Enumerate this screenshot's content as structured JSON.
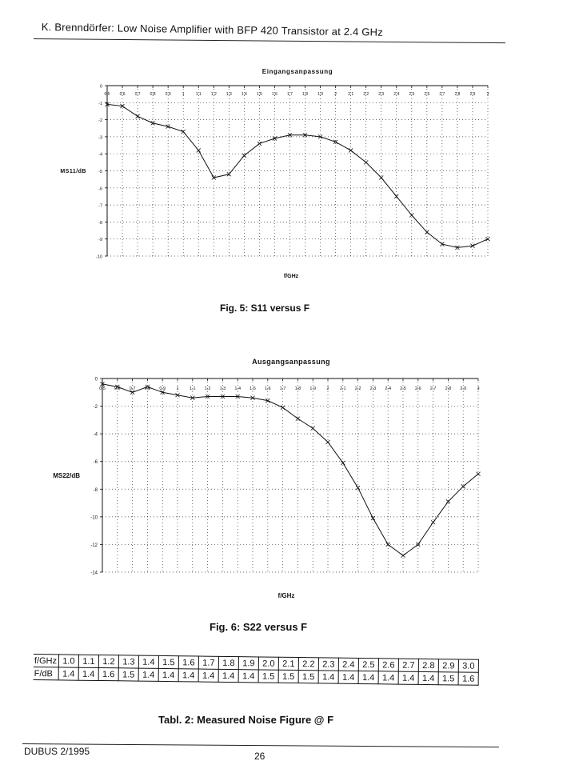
{
  "header": {
    "title": "K. Brenndörfer: Low Noise Amplifier with BFP 420 Transistor at 2.4 GHz"
  },
  "chart_data": [
    {
      "type": "line",
      "title": "Eingangsanpassung",
      "xlabel": "f/GHz",
      "ylabel": "MS11/dB",
      "xlim": [
        0.5,
        3.0
      ],
      "ylim": [
        -10,
        0
      ],
      "grid": true,
      "x_ticks": [
        "0,5",
        "0,6",
        "0,7",
        "0,8",
        "0,9",
        "1",
        "1,1",
        "1,2",
        "1,3",
        "1,4",
        "1,5",
        "1,6",
        "1,7",
        "1,8",
        "1,9",
        "2",
        "2,1",
        "2,2",
        "2,3",
        "2,4",
        "2,5",
        "2,6",
        "2,7",
        "2,8",
        "2,9",
        "3"
      ],
      "y_ticks": [
        "0",
        "-1",
        "-2",
        "-3",
        "-4",
        "-5",
        "-6",
        "-7",
        "-8",
        "-9",
        "-10"
      ],
      "series": [
        {
          "x": [
            0.5,
            0.6,
            0.7,
            0.8,
            0.9,
            1.0,
            1.1,
            1.2,
            1.3,
            1.4,
            1.5,
            1.6,
            1.7,
            1.8,
            1.9,
            2.0,
            2.1,
            2.2,
            2.3,
            2.4,
            2.5,
            2.6,
            2.7,
            2.8,
            2.9,
            3.0
          ],
          "values": [
            -1.1,
            -1.2,
            -1.8,
            -2.2,
            -2.4,
            -2.7,
            -3.8,
            -5.4,
            -5.2,
            -4.1,
            -3.4,
            -3.1,
            -2.9,
            -2.9,
            -3.0,
            -3.3,
            -3.8,
            -4.5,
            -5.4,
            -6.5,
            -7.6,
            -8.6,
            -9.3,
            -9.5,
            -9.4,
            -9.0
          ]
        }
      ]
    },
    {
      "type": "line",
      "title": "Ausgangsanpassung",
      "xlabel": "f/GHz",
      "ylabel": "MS22/dB",
      "xlim": [
        0.5,
        3.0
      ],
      "ylim": [
        -14,
        0
      ],
      "grid": true,
      "x_ticks": [
        "0,5",
        "0,6",
        "0,7",
        "0,8",
        "0,9",
        "1",
        "1,1",
        "1,2",
        "1,3",
        "1,4",
        "1,5",
        "1,6",
        "1,7",
        "1,8",
        "1,9",
        "2",
        "2,1",
        "2,2",
        "2,3",
        "2,4",
        "2,5",
        "2,6",
        "2,7",
        "2,8",
        "2,9",
        "3"
      ],
      "y_ticks": [
        "0",
        "-2",
        "-4",
        "-6",
        "-8",
        "-10",
        "-12",
        "-14"
      ],
      "series": [
        {
          "x": [
            0.5,
            0.6,
            0.7,
            0.8,
            0.9,
            1.0,
            1.1,
            1.2,
            1.3,
            1.4,
            1.5,
            1.6,
            1.7,
            1.8,
            1.9,
            2.0,
            2.1,
            2.2,
            2.3,
            2.4,
            2.5,
            2.6,
            2.7,
            2.8,
            2.9,
            3.0
          ],
          "values": [
            -0.4,
            -0.6,
            -1.0,
            -0.6,
            -1.0,
            -1.2,
            -1.4,
            -1.3,
            -1.3,
            -1.3,
            -1.4,
            -1.6,
            -2.1,
            -2.9,
            -3.6,
            -4.6,
            -6.1,
            -7.9,
            -10.1,
            -12.0,
            -12.8,
            -12.0,
            -10.4,
            -8.9,
            -7.8,
            -6.9
          ]
        }
      ]
    }
  ],
  "captions": {
    "fig5": "Fig. 5: S11 versus F",
    "fig6": "Fig. 6: S22 versus F",
    "table": "Tabl. 2: Measured Noise Figure @ F"
  },
  "noise_table": {
    "row1_label": "f/GHz",
    "row2_label": "F/dB",
    "freqs": [
      "1.0",
      "1.1",
      "1.2",
      "1.3",
      "1.4",
      "1.5",
      "1.6",
      "1.7",
      "1.8",
      "1.9",
      "2.0",
      "2.1",
      "2.2",
      "2.3",
      "2.4",
      "2.5",
      "2.6",
      "2.7",
      "2.8",
      "2.9",
      "3.0"
    ],
    "nf": [
      "1.4",
      "1.4",
      "1.6",
      "1.5",
      "1.4",
      "1.4",
      "1.4",
      "1.4",
      "1.4",
      "1.4",
      "1.5",
      "1.5",
      "1.5",
      "1.4",
      "1.4",
      "1.4",
      "1.4",
      "1.4",
      "1.4",
      "1.5",
      "1.6"
    ]
  },
  "footer": {
    "left": "DUBUS 2/1995",
    "page_number": "26"
  }
}
